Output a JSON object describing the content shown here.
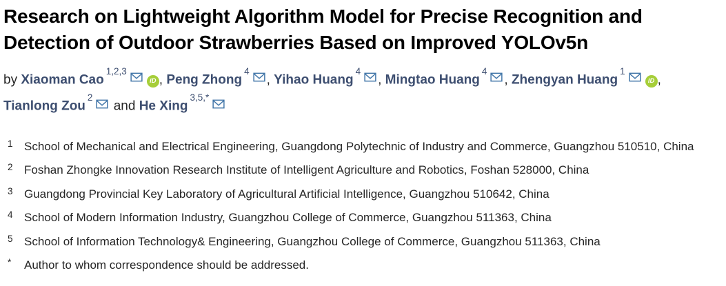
{
  "article": {
    "title": "Research on Lightweight Algorithm Model for Precise Recognition and Detection of Outdoor Strawberries Based on Improved YOLOv5n",
    "by_label": "by",
    "and_label": "and",
    "authors": [
      {
        "name": "Xiaoman Cao",
        "sup": "1,2,3",
        "email": true,
        "orcid": true
      },
      {
        "name": "Peng Zhong",
        "sup": "4",
        "email": true,
        "orcid": false
      },
      {
        "name": "Yihao Huang",
        "sup": "4",
        "email": true,
        "orcid": false
      },
      {
        "name": "Mingtao Huang",
        "sup": "4",
        "email": true,
        "orcid": false
      },
      {
        "name": "Zhengyan Huang",
        "sup": "1",
        "email": true,
        "orcid": true
      },
      {
        "name": "Tianlong Zou",
        "sup": "2",
        "email": true,
        "orcid": false
      },
      {
        "name": "He Xing",
        "sup": "3,5,*",
        "email": true,
        "orcid": false
      }
    ],
    "orcid_icon_text": "iD",
    "affiliations": [
      {
        "marker": "1",
        "text": "School of Mechanical and Electrical Engineering, Guangdong Polytechnic of Industry and Commerce, Guangzhou 510510, China"
      },
      {
        "marker": "2",
        "text": "Foshan Zhongke Innovation Research Institute of Intelligent Agriculture and Robotics, Foshan 528000, China"
      },
      {
        "marker": "3",
        "text": "Guangdong Provincial Key Laboratory of Agricultural Artificial Intelligence, Guangzhou 510642, China"
      },
      {
        "marker": "4",
        "text": "School of Modern Information Industry, Guangzhou College of Commerce, Guangzhou 511363, China"
      },
      {
        "marker": "5",
        "text": "School of Information Technology& Engineering, Guangzhou College of Commerce, Guangzhou 511363, China"
      },
      {
        "marker": "*",
        "text": "Author to whom correspondence should be addressed."
      }
    ],
    "colors": {
      "title": "#000000",
      "author_name": "#3d4e70",
      "body_text": "#262626",
      "envelope_blue": "#4377a9",
      "orcid_green": "#a6ce39"
    }
  }
}
